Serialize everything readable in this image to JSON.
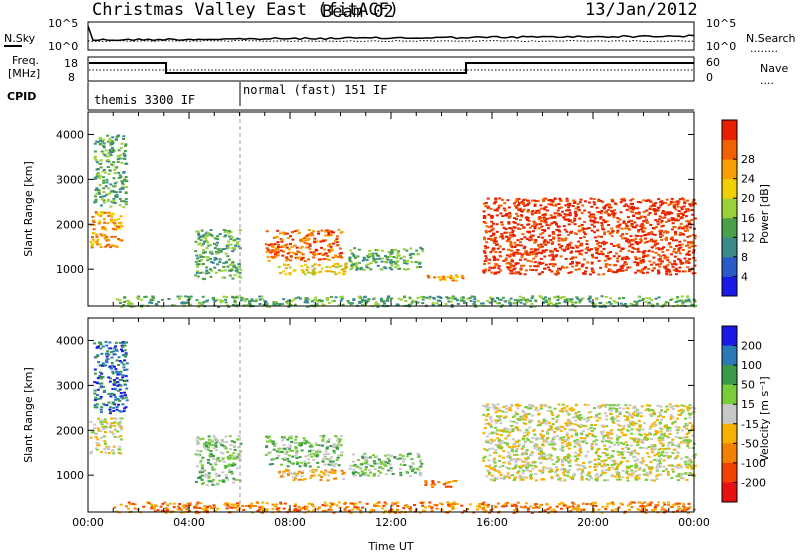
{
  "header": {
    "title": "Christmas Valley East (fitACF)",
    "beam": "Beam 02",
    "date": "13/Jan/2012"
  },
  "left_labels": {
    "nsky": "N.Sky",
    "freq_line1": "Freq.",
    "freq_line2": "[MHz]",
    "cpid": "CPID"
  },
  "right_labels": {
    "nsearch": "N.Search",
    "nsearch_dots": "........",
    "nave": "Nave",
    "nave_dots": "...."
  },
  "noise_panel": {
    "left_ticks": [
      "10^5",
      "10^0"
    ],
    "right_ticks": [
      "10^5",
      "10^0"
    ]
  },
  "freq_panel": {
    "left_ticks": [
      "18",
      "8"
    ],
    "right_ticks": [
      "60",
      "0"
    ]
  },
  "cpid_panel": {
    "segments": [
      {
        "label": "themis 3300 IF",
        "start_hour": 0,
        "end_hour": 6
      },
      {
        "label": "normal (fast) 151 IF",
        "start_hour": 6,
        "end_hour": 24
      }
    ]
  },
  "chart_data": [
    {
      "type": "heatmap",
      "name": "power",
      "ylabel": "Slant Range [km]",
      "ylim": [
        180,
        4500
      ],
      "xlim": [
        0,
        24
      ],
      "yticks": [
        "1000",
        "2000",
        "3000",
        "4000"
      ],
      "colorbar": {
        "label": "Power [dB]",
        "ticks": [
          "4",
          "8",
          "12",
          "16",
          "20",
          "24",
          "28"
        ],
        "colors": [
          "#1a1ae6",
          "#2a5ac8",
          "#3a8a8a",
          "#4aa04a",
          "#9ad23a",
          "#f0d000",
          "#f7a000",
          "#f36000",
          "#e82000"
        ]
      },
      "echo_regions": [
        {
          "t0": 0.05,
          "t1": 1.3,
          "r0": 1500,
          "r1": 2300,
          "level": 6
        },
        {
          "t0": 0.2,
          "t1": 1.5,
          "r0": 2400,
          "r1": 4000,
          "level": 3
        },
        {
          "t0": 4.2,
          "t1": 6.0,
          "r0": 800,
          "r1": 1900,
          "level": 3
        },
        {
          "t0": 7.0,
          "t1": 10.0,
          "r0": 1200,
          "r1": 1900,
          "level": 7
        },
        {
          "t0": 7.5,
          "t1": 10.2,
          "r0": 900,
          "r1": 1150,
          "level": 5
        },
        {
          "t0": 10.3,
          "t1": 13.2,
          "r0": 1000,
          "r1": 1500,
          "level": 3
        },
        {
          "t0": 13.3,
          "t1": 14.8,
          "r0": 750,
          "r1": 900,
          "level": 6
        },
        {
          "t0": 15.6,
          "t1": 24.0,
          "r0": 900,
          "r1": 2600,
          "level": 8
        },
        {
          "t0": 1.0,
          "t1": 24.0,
          "r0": 180,
          "r1": 420,
          "level": 3
        }
      ]
    },
    {
      "type": "heatmap",
      "name": "velocity",
      "ylabel": "Slant Range [km]",
      "xlabel": "Time UT",
      "ylim": [
        180,
        4500
      ],
      "xlim": [
        0,
        24
      ],
      "xticks": [
        "00:00",
        "04:00",
        "08:00",
        "12:00",
        "16:00",
        "20:00",
        "00:00"
      ],
      "yticks": [
        "1000",
        "2000",
        "3000",
        "4000"
      ],
      "colorbar": {
        "label": "Velocity [m s⁻¹]",
        "ticks": [
          "200",
          "100",
          "50",
          "15",
          "-15",
          "-50",
          "-100",
          "-200"
        ],
        "colors": [
          "#1a1ae6",
          "#2a7ab8",
          "#3a9a4a",
          "#7acd3a",
          "#c8c8c8",
          "#f7b000",
          "#f38000",
          "#f34000",
          "#e81010"
        ]
      },
      "echo_regions": [
        {
          "t0": 0.05,
          "t1": 1.3,
          "r0": 1500,
          "r1": 2300,
          "level": 4
        },
        {
          "t0": 0.2,
          "t1": 1.5,
          "r0": 2400,
          "r1": 4000,
          "level": 1
        },
        {
          "t0": 4.2,
          "t1": 6.0,
          "r0": 800,
          "r1": 1900,
          "level": 3
        },
        {
          "t0": 7.0,
          "t1": 10.0,
          "r0": 1200,
          "r1": 1900,
          "level": 3
        },
        {
          "t0": 7.5,
          "t1": 10.2,
          "r0": 900,
          "r1": 1150,
          "level": 5
        },
        {
          "t0": 10.3,
          "t1": 13.2,
          "r0": 1000,
          "r1": 1500,
          "level": 3
        },
        {
          "t0": 13.3,
          "t1": 14.8,
          "r0": 750,
          "r1": 900,
          "level": 6
        },
        {
          "t0": 15.6,
          "t1": 24.0,
          "r0": 900,
          "r1": 2600,
          "level": 4
        },
        {
          "t0": 1.0,
          "t1": 24.0,
          "r0": 180,
          "r1": 420,
          "level": 6
        }
      ]
    }
  ]
}
